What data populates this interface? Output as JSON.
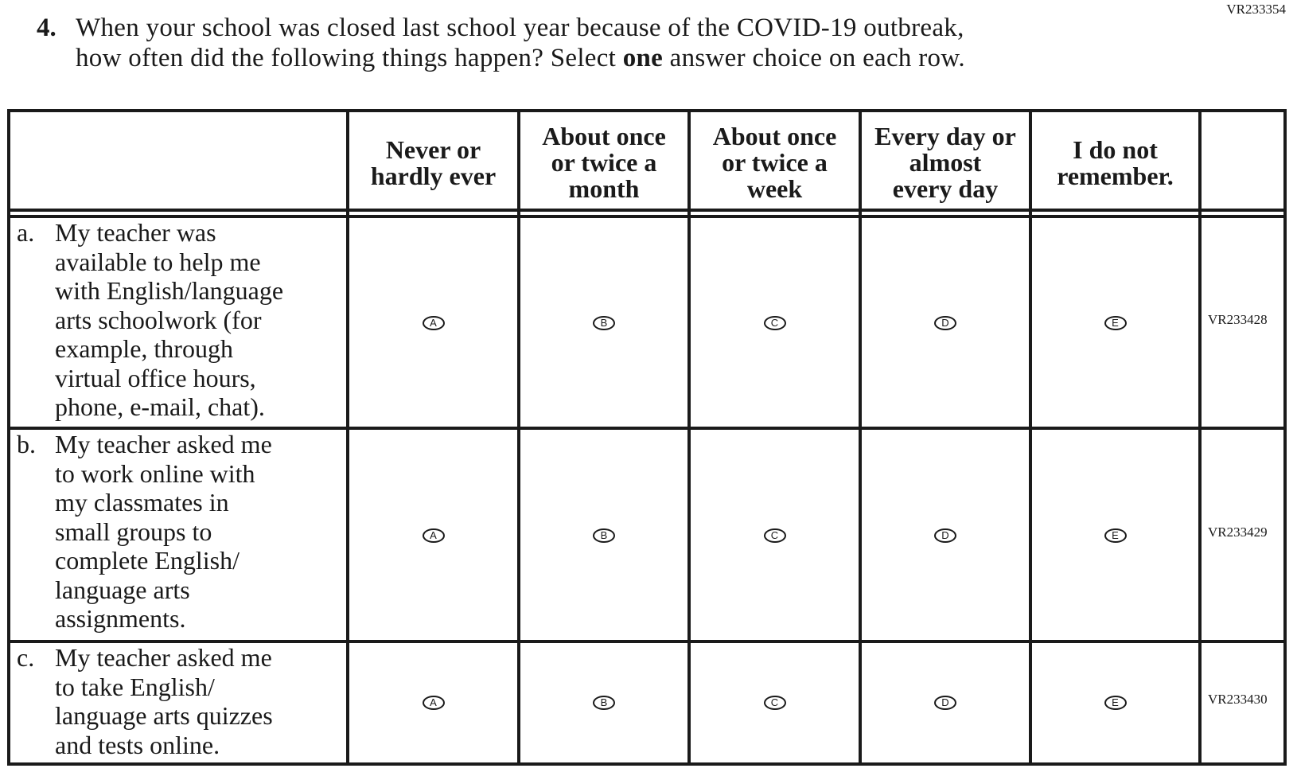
{
  "top_code": "VR233354",
  "question": {
    "number": "4.",
    "line1": "When your school was closed last school year because of the COVID-19 outbreak,",
    "line2_pre": "how often did the following things happen? Select ",
    "line2_bold": "one",
    "line2_post": " answer choice on each row."
  },
  "columns": [
    "Never or hardly ever",
    "About once or twice a month",
    "About once or twice a week",
    "Every day or almost every day",
    "I do not remember."
  ],
  "column_lines": [
    [
      "Never or",
      "hardly ever"
    ],
    [
      "About once",
      "or twice a",
      "month"
    ],
    [
      "About once",
      "or twice a",
      "week"
    ],
    [
      "Every day or",
      "almost",
      "every day"
    ],
    [
      "I do not",
      "remember."
    ]
  ],
  "choices": [
    "A",
    "B",
    "C",
    "D",
    "E"
  ],
  "rows": [
    {
      "label": "a.",
      "text": "My teacher was available to help me with English/language arts schoolwork (for example, through virtual office hours, phone, e-mail, chat).",
      "lines": [
        "My teacher was",
        "available to help me",
        "with English/language",
        "arts schoolwork (for",
        "example, through",
        "virtual office hours,",
        "phone, e-mail, chat)."
      ],
      "code": "VR233428"
    },
    {
      "label": "b.",
      "text": "My teacher asked me to work online with my classmates in small groups to complete English/language arts assignments.",
      "lines": [
        "My teacher asked me",
        "to work online with",
        "my classmates in",
        "small groups to",
        "complete English/",
        "language arts",
        "assignments."
      ],
      "code": "VR233429"
    },
    {
      "label": "c.",
      "text": "My teacher asked me to take English/language arts quizzes and tests online.",
      "lines": [
        "My teacher asked me",
        "to take English/",
        "language arts quizzes",
        "and tests online."
      ],
      "code": "VR233430"
    }
  ]
}
